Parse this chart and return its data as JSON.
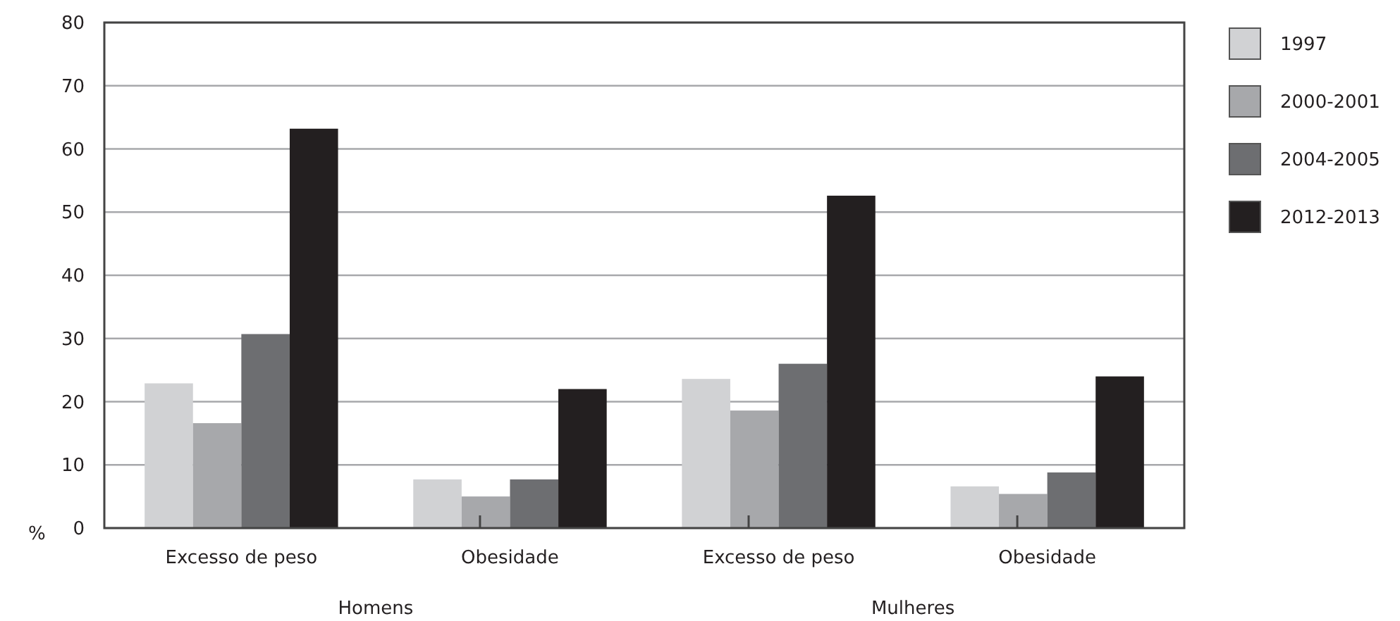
{
  "chart_data": {
    "type": "bar",
    "ylabel": "%",
    "categories": [
      "Excesso de peso",
      "Obesidade",
      "Excesso de peso",
      "Obesidade"
    ],
    "series": [
      {
        "name": "1997",
        "color": "#d1d2d4",
        "values": [
          22.9,
          7.7,
          23.6,
          6.6
        ]
      },
      {
        "name": "2000-2001",
        "color": "#a7a8ab",
        "values": [
          16.6,
          5.0,
          18.6,
          5.4
        ]
      },
      {
        "name": "2004-2005",
        "color": "#6d6e71",
        "values": [
          30.7,
          7.7,
          26.0,
          8.8
        ]
      },
      {
        "name": "2012-2013",
        "color": "#231f20",
        "values": [
          63.2,
          22.0,
          52.6,
          24.0
        ]
      }
    ],
    "ylim": [
      0,
      80
    ],
    "yticks": [
      0,
      10,
      20,
      30,
      40,
      50,
      60,
      70,
      80
    ],
    "grid": "y",
    "legend": "top right",
    "annotations": [
      "Homens",
      "Mulheres"
    ]
  }
}
